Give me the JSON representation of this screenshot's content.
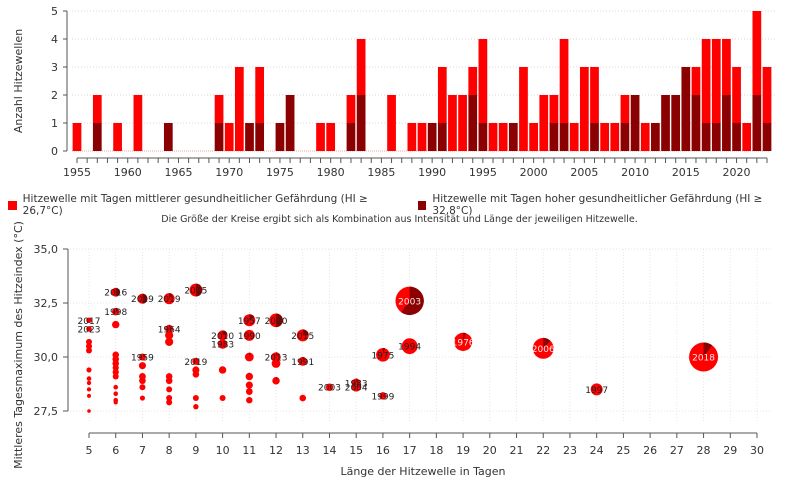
{
  "colors": {
    "moderate": "#ff0000",
    "high": "#8b0000",
    "grid": "#dddddd",
    "axis": "#555555"
  },
  "legend": {
    "moderate_label": "Hitzewelle mit Tagen mittlerer gesundheitlicher Gefährdung (HI ≥ 26,7°C)",
    "high_label": "Hitzewelle mit Tagen hoher gesundheitlicher Gefährdung (HI ≥ 32,8°C)",
    "note": "Die Größe der Kreise ergibt sich als Kombination aus Intensität und Länge der jeweiligen Hitzewelle."
  },
  "chart_data": [
    {
      "type": "bar",
      "stacked": true,
      "title": "",
      "xlabel": "",
      "ylabel": "Anzahl Hitzewellen",
      "ylim": [
        0,
        5
      ],
      "yticks": [
        "0",
        "1",
        "2",
        "3",
        "4",
        "5"
      ],
      "xticks": [
        "1955",
        "1960",
        "1965",
        "1970",
        "1975",
        "1980",
        "1985",
        "1990",
        "1995",
        "2000",
        "2005",
        "2010",
        "2015",
        "2020"
      ],
      "grid": true,
      "categories": [
        1955,
        1956,
        1957,
        1958,
        1959,
        1960,
        1961,
        1962,
        1963,
        1964,
        1965,
        1966,
        1967,
        1968,
        1969,
        1970,
        1971,
        1972,
        1973,
        1974,
        1975,
        1976,
        1977,
        1978,
        1979,
        1980,
        1981,
        1982,
        1983,
        1984,
        1985,
        1986,
        1987,
        1988,
        1989,
        1990,
        1991,
        1992,
        1993,
        1994,
        1995,
        1996,
        1997,
        1998,
        1999,
        2000,
        2001,
        2002,
        2003,
        2004,
        2005,
        2006,
        2007,
        2008,
        2009,
        2010,
        2011,
        2012,
        2013,
        2014,
        2015,
        2016,
        2017,
        2018,
        2019,
        2020,
        2021,
        2022,
        2023
      ],
      "series": [
        {
          "name": "Hitzewelle mit Tagen hoher gesundheitlicher Gefährdung",
          "color": "#8b0000",
          "values": [
            0,
            0,
            1,
            0,
            0,
            0,
            0,
            0,
            0,
            1,
            0,
            0,
            0,
            0,
            1,
            0,
            0,
            1,
            1,
            0,
            1,
            2,
            0,
            0,
            0,
            0,
            0,
            1,
            2,
            0,
            0,
            0,
            0,
            0,
            0,
            1,
            1,
            0,
            0,
            2,
            1,
            0,
            0,
            1,
            0,
            0,
            0,
            1,
            1,
            0,
            0,
            1,
            0,
            0,
            1,
            2,
            0,
            1,
            2,
            2,
            3,
            2,
            1,
            1,
            2,
            1,
            0,
            2,
            1
          ]
        },
        {
          "name": "Hitzewelle mit Tagen mittlerer gesundheitlicher Gefährdung",
          "color": "#ff0000",
          "values": [
            1,
            0,
            1,
            0,
            1,
            0,
            2,
            0,
            0,
            0,
            0,
            0,
            0,
            0,
            1,
            1,
            3,
            0,
            2,
            0,
            0,
            0,
            0,
            0,
            1,
            1,
            0,
            1,
            2,
            0,
            0,
            2,
            0,
            1,
            1,
            0,
            2,
            2,
            2,
            1,
            3,
            1,
            1,
            0,
            3,
            1,
            2,
            1,
            3,
            1,
            3,
            2,
            1,
            1,
            1,
            0,
            1,
            0,
            0,
            0,
            0,
            1,
            3,
            3,
            2,
            2,
            1,
            3,
            2
          ]
        }
      ]
    },
    {
      "type": "scatter",
      "subtype": "bubble-pie",
      "title": "",
      "xlabel": "Länge der Hitzewelle in Tagen",
      "ylabel": "Mittleres Tagesmaximum des Hitzeindex (°C)",
      "xlim": [
        5,
        30
      ],
      "ylim": [
        27.5,
        35.0
      ],
      "xticks": [
        "5",
        "6",
        "7",
        "8",
        "9",
        "10",
        "11",
        "12",
        "13",
        "14",
        "15",
        "16",
        "17",
        "18",
        "19",
        "20",
        "21",
        "22",
        "23",
        "24",
        "25",
        "26",
        "27",
        "28",
        "29",
        "30"
      ],
      "yticks": [
        "27,5",
        "30,0",
        "32,5",
        "35,0"
      ],
      "grid": true,
      "points": [
        {
          "x": 5,
          "y": 31.7,
          "size": 1,
          "high_share": 0,
          "label": "2017"
        },
        {
          "x": 5,
          "y": 31.3,
          "size": 1,
          "high_share": 0,
          "label": "2023"
        },
        {
          "x": 5,
          "y": 30.7,
          "size": 1.2,
          "high_share": 0,
          "label": ""
        },
        {
          "x": 5,
          "y": 30.5,
          "size": 1.2,
          "high_share": 0,
          "label": ""
        },
        {
          "x": 5,
          "y": 30.3,
          "size": 1.2,
          "high_share": 0,
          "label": ""
        },
        {
          "x": 5,
          "y": 29.4,
          "size": 0.8,
          "high_share": 0,
          "label": ""
        },
        {
          "x": 5,
          "y": 29.0,
          "size": 0.6,
          "high_share": 0,
          "label": ""
        },
        {
          "x": 5,
          "y": 28.8,
          "size": 0.5,
          "high_share": 0,
          "label": ""
        },
        {
          "x": 5,
          "y": 28.5,
          "size": 0.5,
          "high_share": 0,
          "label": ""
        },
        {
          "x": 5,
          "y": 28.2,
          "size": 0.4,
          "high_share": 0,
          "label": ""
        },
        {
          "x": 5,
          "y": 27.5,
          "size": 0.3,
          "high_share": 0,
          "label": ""
        },
        {
          "x": 6,
          "y": 33.0,
          "size": 3,
          "high_share": 0.5,
          "label": "2016"
        },
        {
          "x": 6,
          "y": 32.1,
          "size": 2,
          "high_share": 0.1,
          "label": "1998"
        },
        {
          "x": 6,
          "y": 31.5,
          "size": 2,
          "high_share": 0,
          "label": ""
        },
        {
          "x": 6,
          "y": 30.1,
          "size": 1.5,
          "high_share": 0,
          "label": ""
        },
        {
          "x": 6,
          "y": 29.9,
          "size": 1.5,
          "high_share": 0,
          "label": ""
        },
        {
          "x": 6,
          "y": 29.7,
          "size": 1.5,
          "high_share": 0,
          "label": ""
        },
        {
          "x": 6,
          "y": 29.5,
          "size": 1.3,
          "high_share": 0,
          "label": ""
        },
        {
          "x": 6,
          "y": 29.3,
          "size": 1.3,
          "high_share": 0,
          "label": ""
        },
        {
          "x": 6,
          "y": 29.1,
          "size": 1.2,
          "high_share": 0,
          "label": ""
        },
        {
          "x": 6,
          "y": 28.6,
          "size": 0.6,
          "high_share": 0,
          "label": ""
        },
        {
          "x": 6,
          "y": 28.3,
          "size": 0.6,
          "high_share": 0,
          "label": ""
        },
        {
          "x": 6,
          "y": 28.0,
          "size": 0.6,
          "high_share": 0,
          "label": ""
        },
        {
          "x": 6,
          "y": 27.9,
          "size": 0.5,
          "high_share": 0,
          "label": ""
        },
        {
          "x": 7,
          "y": 32.7,
          "size": 4,
          "high_share": 0.5,
          "label": "2019"
        },
        {
          "x": 7,
          "y": 30.0,
          "size": 1.8,
          "high_share": 0,
          "label": "1959"
        },
        {
          "x": 7,
          "y": 29.6,
          "size": 1.8,
          "high_share": 0,
          "label": ""
        },
        {
          "x": 7,
          "y": 29.1,
          "size": 1.6,
          "high_share": 0,
          "label": ""
        },
        {
          "x": 7,
          "y": 28.9,
          "size": 1.5,
          "high_share": 0,
          "label": ""
        },
        {
          "x": 7,
          "y": 28.6,
          "size": 1.2,
          "high_share": 0,
          "label": ""
        },
        {
          "x": 7,
          "y": 28.1,
          "size": 0.8,
          "high_share": 0,
          "label": ""
        },
        {
          "x": 8,
          "y": 32.7,
          "size": 5,
          "high_share": 0.1,
          "label": "2019"
        },
        {
          "x": 8,
          "y": 31.3,
          "size": 2.5,
          "high_share": 0.05,
          "label": "1964"
        },
        {
          "x": 8,
          "y": 31.0,
          "size": 2.5,
          "high_share": 0,
          "label": ""
        },
        {
          "x": 8,
          "y": 30.7,
          "size": 2.5,
          "high_share": 0,
          "label": ""
        },
        {
          "x": 8,
          "y": 29.1,
          "size": 1.5,
          "high_share": 0,
          "label": ""
        },
        {
          "x": 8,
          "y": 28.9,
          "size": 1.5,
          "high_share": 0,
          "label": ""
        },
        {
          "x": 8,
          "y": 28.5,
          "size": 1.2,
          "high_share": 0,
          "label": ""
        },
        {
          "x": 8,
          "y": 28.1,
          "size": 1.2,
          "high_share": 0,
          "label": ""
        },
        {
          "x": 8,
          "y": 27.9,
          "size": 1.2,
          "high_share": 0,
          "label": ""
        },
        {
          "x": 9,
          "y": 33.1,
          "size": 7,
          "high_share": 0.5,
          "label": "2015"
        },
        {
          "x": 9,
          "y": 29.8,
          "size": 1.8,
          "high_share": 0.05,
          "label": "2019"
        },
        {
          "x": 9,
          "y": 29.4,
          "size": 1.8,
          "high_share": 0,
          "label": ""
        },
        {
          "x": 9,
          "y": 29.2,
          "size": 1.5,
          "high_share": 0,
          "label": ""
        },
        {
          "x": 9,
          "y": 28.1,
          "size": 1.2,
          "high_share": 0,
          "label": ""
        },
        {
          "x": 9,
          "y": 27.7,
          "size": 0.9,
          "high_share": 0,
          "label": ""
        },
        {
          "x": 10,
          "y": 31.0,
          "size": 4,
          "high_share": 0.2,
          "label": "2010"
        },
        {
          "x": 10,
          "y": 30.6,
          "size": 3.5,
          "high_share": 0,
          "label": "1983"
        },
        {
          "x": 10,
          "y": 29.4,
          "size": 2,
          "high_share": 0,
          "label": ""
        },
        {
          "x": 10,
          "y": 28.1,
          "size": 1.2,
          "high_share": 0,
          "label": ""
        },
        {
          "x": 11,
          "y": 31.7,
          "size": 6,
          "high_share": 0.15,
          "label": "1957"
        },
        {
          "x": 11,
          "y": 31.0,
          "size": 5,
          "high_share": 0,
          "label": "1990"
        },
        {
          "x": 11,
          "y": 30.0,
          "size": 3,
          "high_share": 0.05,
          "label": ""
        },
        {
          "x": 11,
          "y": 29.1,
          "size": 2,
          "high_share": 0,
          "label": ""
        },
        {
          "x": 11,
          "y": 28.7,
          "size": 1.8,
          "high_share": 0,
          "label": ""
        },
        {
          "x": 11,
          "y": 28.4,
          "size": 1.6,
          "high_share": 0,
          "label": ""
        },
        {
          "x": 11,
          "y": 28.0,
          "size": 1.4,
          "high_share": 0,
          "label": ""
        },
        {
          "x": 12,
          "y": 31.7,
          "size": 8,
          "high_share": 0.5,
          "label": "2020"
        },
        {
          "x": 12,
          "y": 30.0,
          "size": 3.5,
          "high_share": 0.05,
          "label": "2013"
        },
        {
          "x": 12,
          "y": 29.7,
          "size": 3,
          "high_share": 0,
          "label": ""
        },
        {
          "x": 12,
          "y": 28.9,
          "size": 2,
          "high_share": 0.05,
          "label": ""
        },
        {
          "x": 13,
          "y": 31.0,
          "size": 6,
          "high_share": 0.25,
          "label": "2015"
        },
        {
          "x": 13,
          "y": 29.8,
          "size": 3,
          "high_share": 0.05,
          "label": "1991"
        },
        {
          "x": 13,
          "y": 28.1,
          "size": 1.5,
          "high_share": 0,
          "label": ""
        },
        {
          "x": 14,
          "y": 28.6,
          "size": 2,
          "high_share": 0,
          "label": "2003"
        },
        {
          "x": 15,
          "y": 28.8,
          "size": 3,
          "high_share": 0.05,
          "label": "1983"
        },
        {
          "x": 15,
          "y": 28.6,
          "size": 3,
          "high_share": 0,
          "label": "2004"
        },
        {
          "x": 16,
          "y": 30.1,
          "size": 8,
          "high_share": 0.05,
          "label": "1975"
        },
        {
          "x": 16,
          "y": 28.2,
          "size": 2,
          "high_share": 0,
          "label": "1999"
        },
        {
          "x": 17,
          "y": 30.5,
          "size": 11,
          "high_share": 0,
          "label": "1994"
        },
        {
          "x": 17,
          "y": 32.6,
          "size": 38,
          "high_share": 0.6,
          "label": "2003"
        },
        {
          "x": 19,
          "y": 30.7,
          "size": 15,
          "high_share": 0.05,
          "label": "1976"
        },
        {
          "x": 22,
          "y": 30.4,
          "size": 20,
          "high_share": 0.12,
          "label": "2006"
        },
        {
          "x": 24,
          "y": 28.5,
          "size": 6,
          "high_share": 0,
          "label": "1997"
        },
        {
          "x": 28,
          "y": 30.0,
          "size": 40,
          "high_share": 0.1,
          "label": "2018"
        }
      ]
    }
  ]
}
